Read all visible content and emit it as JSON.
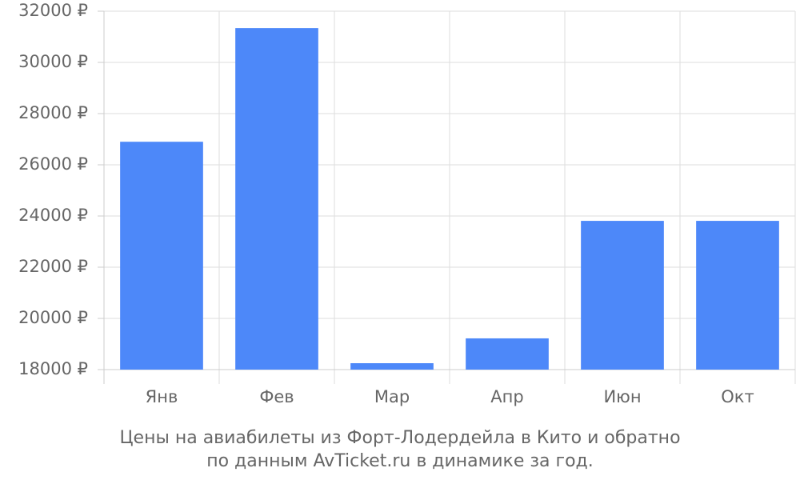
{
  "chart_data": {
    "type": "bar",
    "caption": [
      "Цены на авиабилеты из Форт-Лодердейла в Кито и обратно",
      "по данным AvTicket.ru в динамике за год."
    ],
    "categories": [
      "Янв",
      "Фев",
      "Мар",
      "Апр",
      "Июн",
      "Окт"
    ],
    "values": [
      26900,
      31340,
      18250,
      19220,
      23810,
      23810
    ],
    "color": "#4d88f9",
    "ylim": [
      18000,
      32000
    ],
    "yticks": [
      {
        "value": 18000,
        "label": "18000 ₽"
      },
      {
        "value": 20000,
        "label": "20000 ₽"
      },
      {
        "value": 22000,
        "label": "22000 ₽"
      },
      {
        "value": 24000,
        "label": "24000 ₽"
      },
      {
        "value": 26000,
        "label": "26000 ₽"
      },
      {
        "value": 28000,
        "label": "28000 ₽"
      },
      {
        "value": 30000,
        "label": "30000 ₽"
      },
      {
        "value": 32000,
        "label": "32000 ₽"
      }
    ],
    "grid": true
  }
}
